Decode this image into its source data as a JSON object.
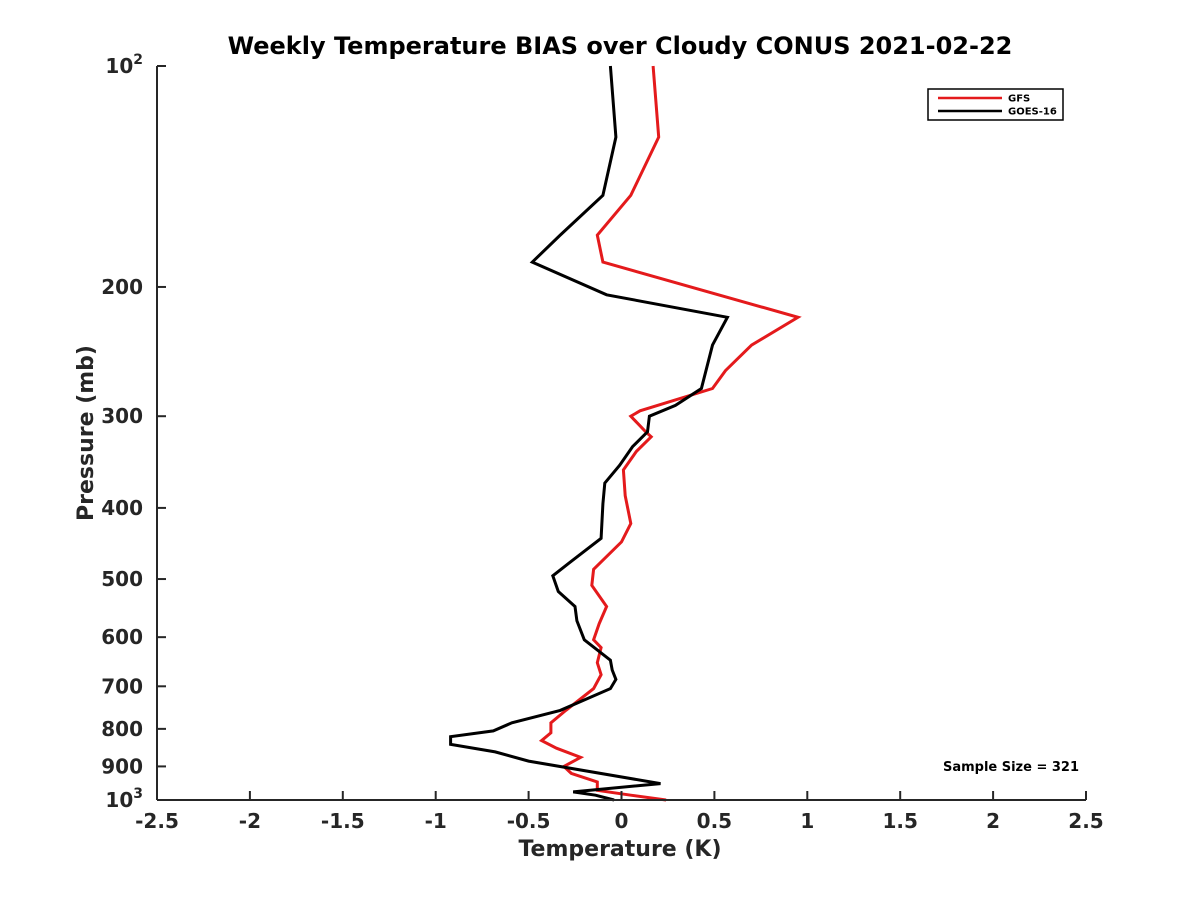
{
  "chart_data": {
    "type": "line",
    "title": "Weekly Temperature BIAS over Cloudy CONUS 2021-02-22",
    "xlabel": "Temperature (K)",
    "ylabel": "Pressure (mb)",
    "xlim": [
      -2.5,
      2.5
    ],
    "ylim": [
      100,
      1000
    ],
    "y_scale": "log",
    "y_reversed": true,
    "grid": false,
    "legend_position": "top-right",
    "x_ticks": [
      -2.5,
      -2,
      -1.5,
      -1,
      -0.5,
      0,
      0.5,
      1,
      1.5,
      2,
      2.5
    ],
    "x_tick_labels": [
      "-2.5",
      "-2",
      "-1.5",
      "-1",
      "-0.5",
      "0",
      "0.5",
      "1",
      "1.5",
      "2",
      "2.5"
    ],
    "y_ticks": [
      {
        "value": 100,
        "base": "10",
        "exp": "2"
      },
      {
        "value": 200,
        "label": "200"
      },
      {
        "value": 300,
        "label": "300"
      },
      {
        "value": 400,
        "label": "400"
      },
      {
        "value": 500,
        "label": "500"
      },
      {
        "value": 600,
        "label": "600"
      },
      {
        "value": 700,
        "label": "700"
      },
      {
        "value": 800,
        "label": "800"
      },
      {
        "value": 900,
        "label": "900"
      },
      {
        "value": 1000,
        "base": "10",
        "exp": "3"
      }
    ],
    "annotation": "Sample Size = 321",
    "series": [
      {
        "name": "GFS",
        "color": "#e41a1c",
        "points": [
          [
            0.17,
            100
          ],
          [
            0.2,
            125
          ],
          [
            0.05,
            150
          ],
          [
            -0.13,
            170
          ],
          [
            -0.1,
            185
          ],
          [
            0.95,
            220
          ],
          [
            0.7,
            240
          ],
          [
            0.56,
            260
          ],
          [
            0.49,
            275
          ],
          [
            0.1,
            295
          ],
          [
            0.05,
            300
          ],
          [
            0.13,
            315
          ],
          [
            0.16,
            320
          ],
          [
            0.08,
            335
          ],
          [
            0.01,
            355
          ],
          [
            0.02,
            385
          ],
          [
            0.05,
            420
          ],
          [
            0.0,
            445
          ],
          [
            -0.15,
            485
          ],
          [
            -0.16,
            510
          ],
          [
            -0.08,
            545
          ],
          [
            -0.12,
            575
          ],
          [
            -0.15,
            605
          ],
          [
            -0.11,
            620
          ],
          [
            -0.13,
            650
          ],
          [
            -0.11,
            675
          ],
          [
            -0.15,
            705
          ],
          [
            -0.3,
            755
          ],
          [
            -0.38,
            785
          ],
          [
            -0.38,
            810
          ],
          [
            -0.43,
            830
          ],
          [
            -0.35,
            850
          ],
          [
            -0.22,
            875
          ],
          [
            -0.31,
            900
          ],
          [
            -0.27,
            920
          ],
          [
            -0.13,
            945
          ],
          [
            -0.13,
            970
          ],
          [
            0.05,
            985
          ],
          [
            0.24,
            1000
          ]
        ]
      },
      {
        "name": "GOES-16",
        "color": "#000000",
        "points": [
          [
            -0.06,
            100
          ],
          [
            -0.03,
            125
          ],
          [
            -0.1,
            150
          ],
          [
            -0.33,
            170
          ],
          [
            -0.48,
            185
          ],
          [
            -0.08,
            205
          ],
          [
            0.57,
            220
          ],
          [
            0.49,
            240
          ],
          [
            0.43,
            275
          ],
          [
            0.29,
            290
          ],
          [
            0.15,
            300
          ],
          [
            0.14,
            315
          ],
          [
            0.06,
            330
          ],
          [
            -0.01,
            350
          ],
          [
            -0.09,
            370
          ],
          [
            -0.1,
            395
          ],
          [
            -0.11,
            440
          ],
          [
            -0.28,
            475
          ],
          [
            -0.37,
            495
          ],
          [
            -0.34,
            520
          ],
          [
            -0.25,
            545
          ],
          [
            -0.24,
            570
          ],
          [
            -0.2,
            605
          ],
          [
            -0.06,
            645
          ],
          [
            -0.05,
            665
          ],
          [
            -0.03,
            685
          ],
          [
            -0.06,
            705
          ],
          [
            -0.33,
            755
          ],
          [
            -0.59,
            785
          ],
          [
            -0.69,
            805
          ],
          [
            -0.92,
            820
          ],
          [
            -0.92,
            840
          ],
          [
            -0.68,
            860
          ],
          [
            -0.5,
            885
          ],
          [
            0.21,
            950
          ],
          [
            -0.26,
            975
          ],
          [
            -0.14,
            985
          ],
          [
            -0.04,
            1000
          ]
        ]
      }
    ]
  }
}
